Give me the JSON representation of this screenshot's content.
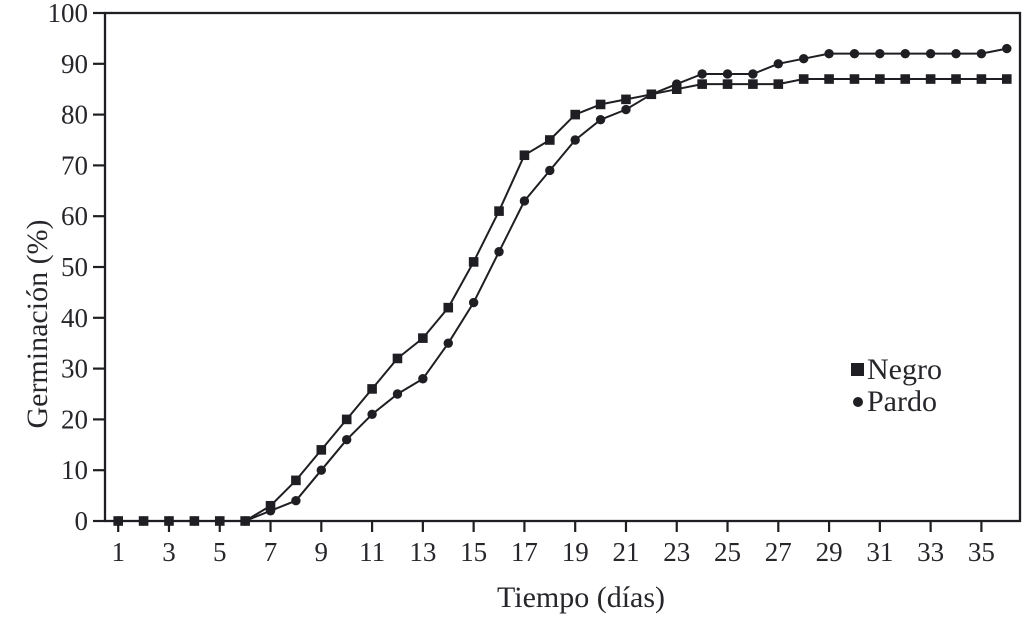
{
  "figure": {
    "background": "#ffffff",
    "ink_color": "#1f1f23",
    "text_color": "#26262b"
  },
  "chart_data": {
    "type": "line",
    "title": "",
    "xlabel": "Tiempo (días)",
    "ylabel": "Germinación (%)",
    "xlim": [
      1,
      36
    ],
    "ylim": [
      0,
      100
    ],
    "grid": false,
    "legend_position": "inside-right",
    "xticks": [
      1,
      3,
      5,
      7,
      9,
      11,
      13,
      15,
      17,
      19,
      21,
      23,
      25,
      27,
      29,
      31,
      33,
      35
    ],
    "yticks": [
      0,
      10,
      20,
      30,
      40,
      50,
      60,
      70,
      80,
      90,
      100
    ],
    "x": [
      1,
      2,
      3,
      4,
      5,
      6,
      7,
      8,
      9,
      10,
      11,
      12,
      13,
      14,
      15,
      16,
      17,
      18,
      19,
      20,
      21,
      22,
      23,
      24,
      25,
      26,
      27,
      28,
      29,
      30,
      31,
      32,
      33,
      34,
      35,
      36
    ],
    "series": [
      {
        "name": "Negro",
        "marker": "square",
        "color": "#1f1f23",
        "values": [
          0,
          0,
          0,
          0,
          0,
          0,
          3,
          8,
          14,
          20,
          26,
          32,
          36,
          42,
          51,
          61,
          72,
          75,
          80,
          82,
          83,
          84,
          85,
          86,
          86,
          86,
          86,
          87,
          87,
          87,
          87,
          87,
          87,
          87,
          87,
          87
        ]
      },
      {
        "name": "Pardo",
        "marker": "circle",
        "color": "#1f1f23",
        "values": [
          0,
          0,
          0,
          0,
          0,
          0,
          2,
          4,
          10,
          16,
          21,
          25,
          28,
          35,
          43,
          53,
          63,
          69,
          75,
          79,
          81,
          84,
          86,
          88,
          88,
          88,
          90,
          91,
          92,
          92,
          92,
          92,
          92,
          92,
          92,
          93
        ]
      }
    ]
  }
}
